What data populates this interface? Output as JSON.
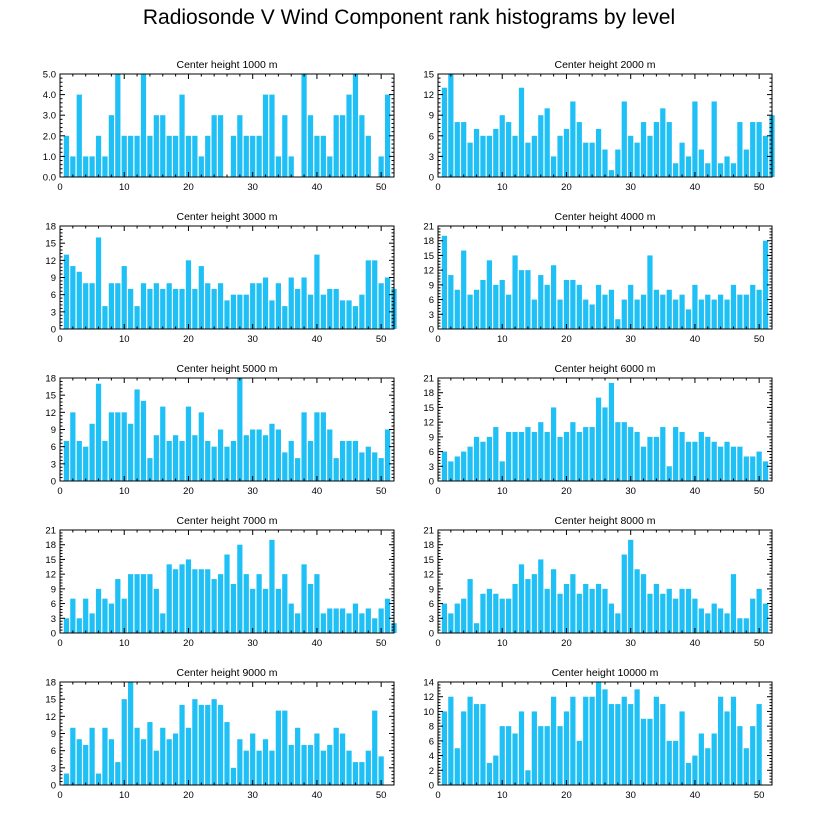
{
  "title": "Radiosonde V Wind Component rank histograms by level",
  "colors": {
    "bar": "#1ec0f6",
    "axis": "#000000",
    "background": "#ffffff"
  },
  "chart_data": [
    {
      "type": "bar",
      "title": "Center height 1000 m",
      "xlim": [
        0,
        52
      ],
      "ylim": [
        0,
        5
      ],
      "xticks": [
        0,
        10,
        20,
        30,
        40,
        50
      ],
      "yticks": [
        0,
        1,
        2,
        3,
        4,
        5
      ],
      "ytick_labels": [
        "0.0",
        "1.0",
        "2.0",
        "3.0",
        "4.0",
        "5.0"
      ],
      "values": [
        2,
        1,
        4,
        1,
        1,
        2,
        1,
        3,
        5,
        2,
        2,
        2,
        5,
        2,
        3,
        3,
        2,
        2,
        4,
        2,
        2,
        1,
        2,
        3,
        3,
        0,
        2,
        3,
        2,
        2,
        2,
        4,
        4,
        1,
        3,
        1,
        0,
        5,
        3,
        2,
        2,
        1,
        3,
        3,
        4,
        5,
        3,
        2,
        0,
        1,
        4
      ]
    },
    {
      "type": "bar",
      "title": "Center height 2000 m",
      "xlim": [
        0,
        52
      ],
      "ylim": [
        0,
        15
      ],
      "xticks": [
        0,
        10,
        20,
        30,
        40,
        50
      ],
      "yticks": [
        0,
        3,
        6,
        9,
        12,
        15
      ],
      "ytick_labels": [
        "0",
        "3",
        "6",
        "9",
        "12",
        "15"
      ],
      "values": [
        13,
        15,
        8,
        8,
        5,
        7,
        6,
        6,
        7,
        9,
        8,
        6,
        13,
        5,
        6,
        9,
        10,
        3,
        6,
        7,
        11,
        8,
        5,
        5,
        7,
        4,
        1,
        4,
        11,
        6,
        5,
        8,
        6,
        8,
        10,
        8,
        2,
        5,
        3,
        11,
        4,
        2,
        11,
        2,
        3,
        2,
        8,
        4,
        8,
        8,
        6,
        9
      ]
    },
    {
      "type": "bar",
      "title": "Center height 3000 m",
      "xlim": [
        0,
        52
      ],
      "ylim": [
        0,
        18
      ],
      "xticks": [
        0,
        10,
        20,
        30,
        40,
        50
      ],
      "yticks": [
        0,
        3,
        6,
        9,
        12,
        15,
        18
      ],
      "ytick_labels": [
        "0",
        "3",
        "6",
        "9",
        "12",
        "15",
        "18"
      ],
      "values": [
        13,
        11,
        10,
        8,
        8,
        16,
        4,
        8,
        8,
        11,
        7,
        4,
        8,
        7,
        8,
        7,
        8,
        7,
        7,
        12,
        7,
        11,
        8,
        7,
        8,
        5,
        6,
        6,
        6,
        8,
        8,
        9,
        5,
        8,
        4,
        9,
        7,
        9,
        6,
        13,
        6,
        7,
        7,
        5,
        5,
        4,
        6,
        12,
        12,
        8,
        9,
        7
      ]
    },
    {
      "type": "bar",
      "title": "Center height 4000 m",
      "xlim": [
        0,
        52
      ],
      "ylim": [
        0,
        21
      ],
      "xticks": [
        0,
        10,
        20,
        30,
        40,
        50
      ],
      "yticks": [
        0,
        3,
        6,
        9,
        12,
        15,
        18,
        21
      ],
      "ytick_labels": [
        "0",
        "3",
        "6",
        "9",
        "12",
        "15",
        "18",
        "21"
      ],
      "values": [
        19,
        11,
        8,
        16,
        7,
        8,
        10,
        14,
        9,
        10,
        7,
        15,
        12,
        12,
        6,
        11,
        9,
        13,
        6,
        10,
        10,
        9,
        6,
        5,
        9,
        7,
        8,
        2,
        6,
        9,
        6,
        7,
        15,
        8,
        7,
        8,
        6,
        7,
        4,
        9,
        6,
        7,
        6,
        7,
        6,
        9,
        7,
        7,
        9,
        8,
        18
      ]
    },
    {
      "type": "bar",
      "title": "Center height 5000 m",
      "xlim": [
        0,
        52
      ],
      "ylim": [
        0,
        18
      ],
      "xticks": [
        0,
        10,
        20,
        30,
        40,
        50
      ],
      "yticks": [
        0,
        3,
        6,
        9,
        12,
        15,
        18
      ],
      "ytick_labels": [
        "0",
        "3",
        "6",
        "9",
        "12",
        "15",
        "18"
      ],
      "values": [
        7,
        12,
        7,
        6,
        10,
        17,
        7,
        12,
        12,
        12,
        10,
        16,
        14,
        4,
        8,
        13,
        7,
        8,
        7,
        13,
        8,
        12,
        7,
        6,
        9,
        6,
        7,
        18,
        8,
        9,
        9,
        8,
        10,
        9,
        5,
        7,
        4,
        12,
        7,
        12,
        12,
        9,
        4,
        7,
        7,
        7,
        5,
        6,
        5,
        4,
        9
      ]
    },
    {
      "type": "bar",
      "title": "Center height 6000 m",
      "xlim": [
        0,
        52
      ],
      "ylim": [
        0,
        21
      ],
      "xticks": [
        0,
        10,
        20,
        30,
        40,
        50
      ],
      "yticks": [
        0,
        3,
        6,
        9,
        12,
        15,
        18,
        21
      ],
      "ytick_labels": [
        "0",
        "3",
        "6",
        "9",
        "12",
        "15",
        "18",
        "21"
      ],
      "values": [
        6,
        4,
        5,
        6,
        7,
        9,
        8,
        9,
        11,
        4,
        10,
        10,
        10,
        11,
        10,
        12,
        10,
        15,
        9,
        10,
        12,
        10,
        11,
        11,
        17,
        15,
        20,
        12,
        12,
        11,
        10,
        7,
        9,
        9,
        11,
        3,
        11,
        10,
        8,
        8,
        10,
        9,
        8,
        7,
        8,
        7,
        7,
        5,
        5,
        6,
        4
      ]
    },
    {
      "type": "bar",
      "title": "Center height 7000 m",
      "xlim": [
        0,
        52
      ],
      "ylim": [
        0,
        21
      ],
      "xticks": [
        0,
        10,
        20,
        30,
        40,
        50
      ],
      "yticks": [
        0,
        3,
        6,
        9,
        12,
        15,
        18,
        21
      ],
      "ytick_labels": [
        "0",
        "3",
        "6",
        "9",
        "12",
        "15",
        "18",
        "21"
      ],
      "values": [
        3,
        7,
        3,
        7,
        4,
        9,
        7,
        6,
        11,
        7,
        12,
        12,
        12,
        12,
        9,
        4,
        14,
        13,
        14,
        15,
        13,
        13,
        13,
        11,
        12,
        16,
        10,
        18,
        12,
        9,
        12,
        9,
        19,
        9,
        12,
        6,
        4,
        14,
        10,
        12,
        4,
        5,
        5,
        5,
        4,
        6,
        4,
        5,
        3,
        5,
        7,
        2
      ]
    },
    {
      "type": "bar",
      "title": "Center height 8000 m",
      "xlim": [
        0,
        52
      ],
      "ylim": [
        0,
        21
      ],
      "xticks": [
        0,
        10,
        20,
        30,
        40,
        50
      ],
      "yticks": [
        0,
        3,
        6,
        9,
        12,
        15,
        18,
        21
      ],
      "ytick_labels": [
        "0",
        "3",
        "6",
        "9",
        "12",
        "15",
        "18",
        "21"
      ],
      "values": [
        6,
        4,
        6,
        7,
        11,
        2,
        8,
        9,
        8,
        7,
        7,
        10,
        14,
        11,
        12,
        15,
        9,
        13,
        8,
        10,
        12,
        8,
        10,
        9,
        10,
        9,
        6,
        4,
        16,
        19,
        13,
        12,
        8,
        10,
        8,
        9,
        7,
        9,
        9,
        7,
        5,
        4,
        6,
        5,
        4,
        12,
        3,
        3,
        7,
        9,
        6
      ]
    },
    {
      "type": "bar",
      "title": "Center height 9000 m",
      "xlim": [
        0,
        52
      ],
      "ylim": [
        0,
        18
      ],
      "xticks": [
        0,
        10,
        20,
        30,
        40,
        50
      ],
      "yticks": [
        0,
        3,
        6,
        9,
        12,
        15,
        18
      ],
      "ytick_labels": [
        "0",
        "3",
        "6",
        "9",
        "12",
        "15",
        "18"
      ],
      "values": [
        2,
        10,
        8,
        7,
        10,
        2,
        10,
        8,
        4,
        15,
        18,
        10,
        8,
        11,
        6,
        10,
        8,
        9,
        14,
        10,
        15,
        14,
        14,
        15,
        14,
        11,
        3,
        8,
        6,
        9,
        6,
        8,
        6,
        13,
        13,
        7,
        10,
        7,
        7,
        9,
        6,
        7,
        10,
        9,
        6,
        4,
        4,
        6,
        13,
        5
      ]
    },
    {
      "type": "bar",
      "title": "Center height 10000 m",
      "xlim": [
        0,
        52
      ],
      "ylim": [
        0,
        14
      ],
      "xticks": [
        0,
        10,
        20,
        30,
        40,
        50
      ],
      "yticks": [
        0,
        2,
        4,
        6,
        8,
        10,
        12,
        14
      ],
      "ytick_labels": [
        "0",
        "2",
        "4",
        "6",
        "8",
        "10",
        "12",
        "14"
      ],
      "values": [
        10,
        12,
        5,
        10,
        12,
        11,
        11,
        3,
        4,
        8,
        8,
        7,
        10,
        2,
        10,
        8,
        8,
        12,
        8,
        10,
        12,
        6,
        12,
        12,
        14,
        13,
        11,
        11,
        12,
        11,
        13,
        9,
        9,
        12,
        11,
        6,
        6,
        10,
        3,
        4,
        7,
        5,
        7,
        12,
        10,
        12,
        8,
        5,
        8,
        11
      ]
    }
  ]
}
